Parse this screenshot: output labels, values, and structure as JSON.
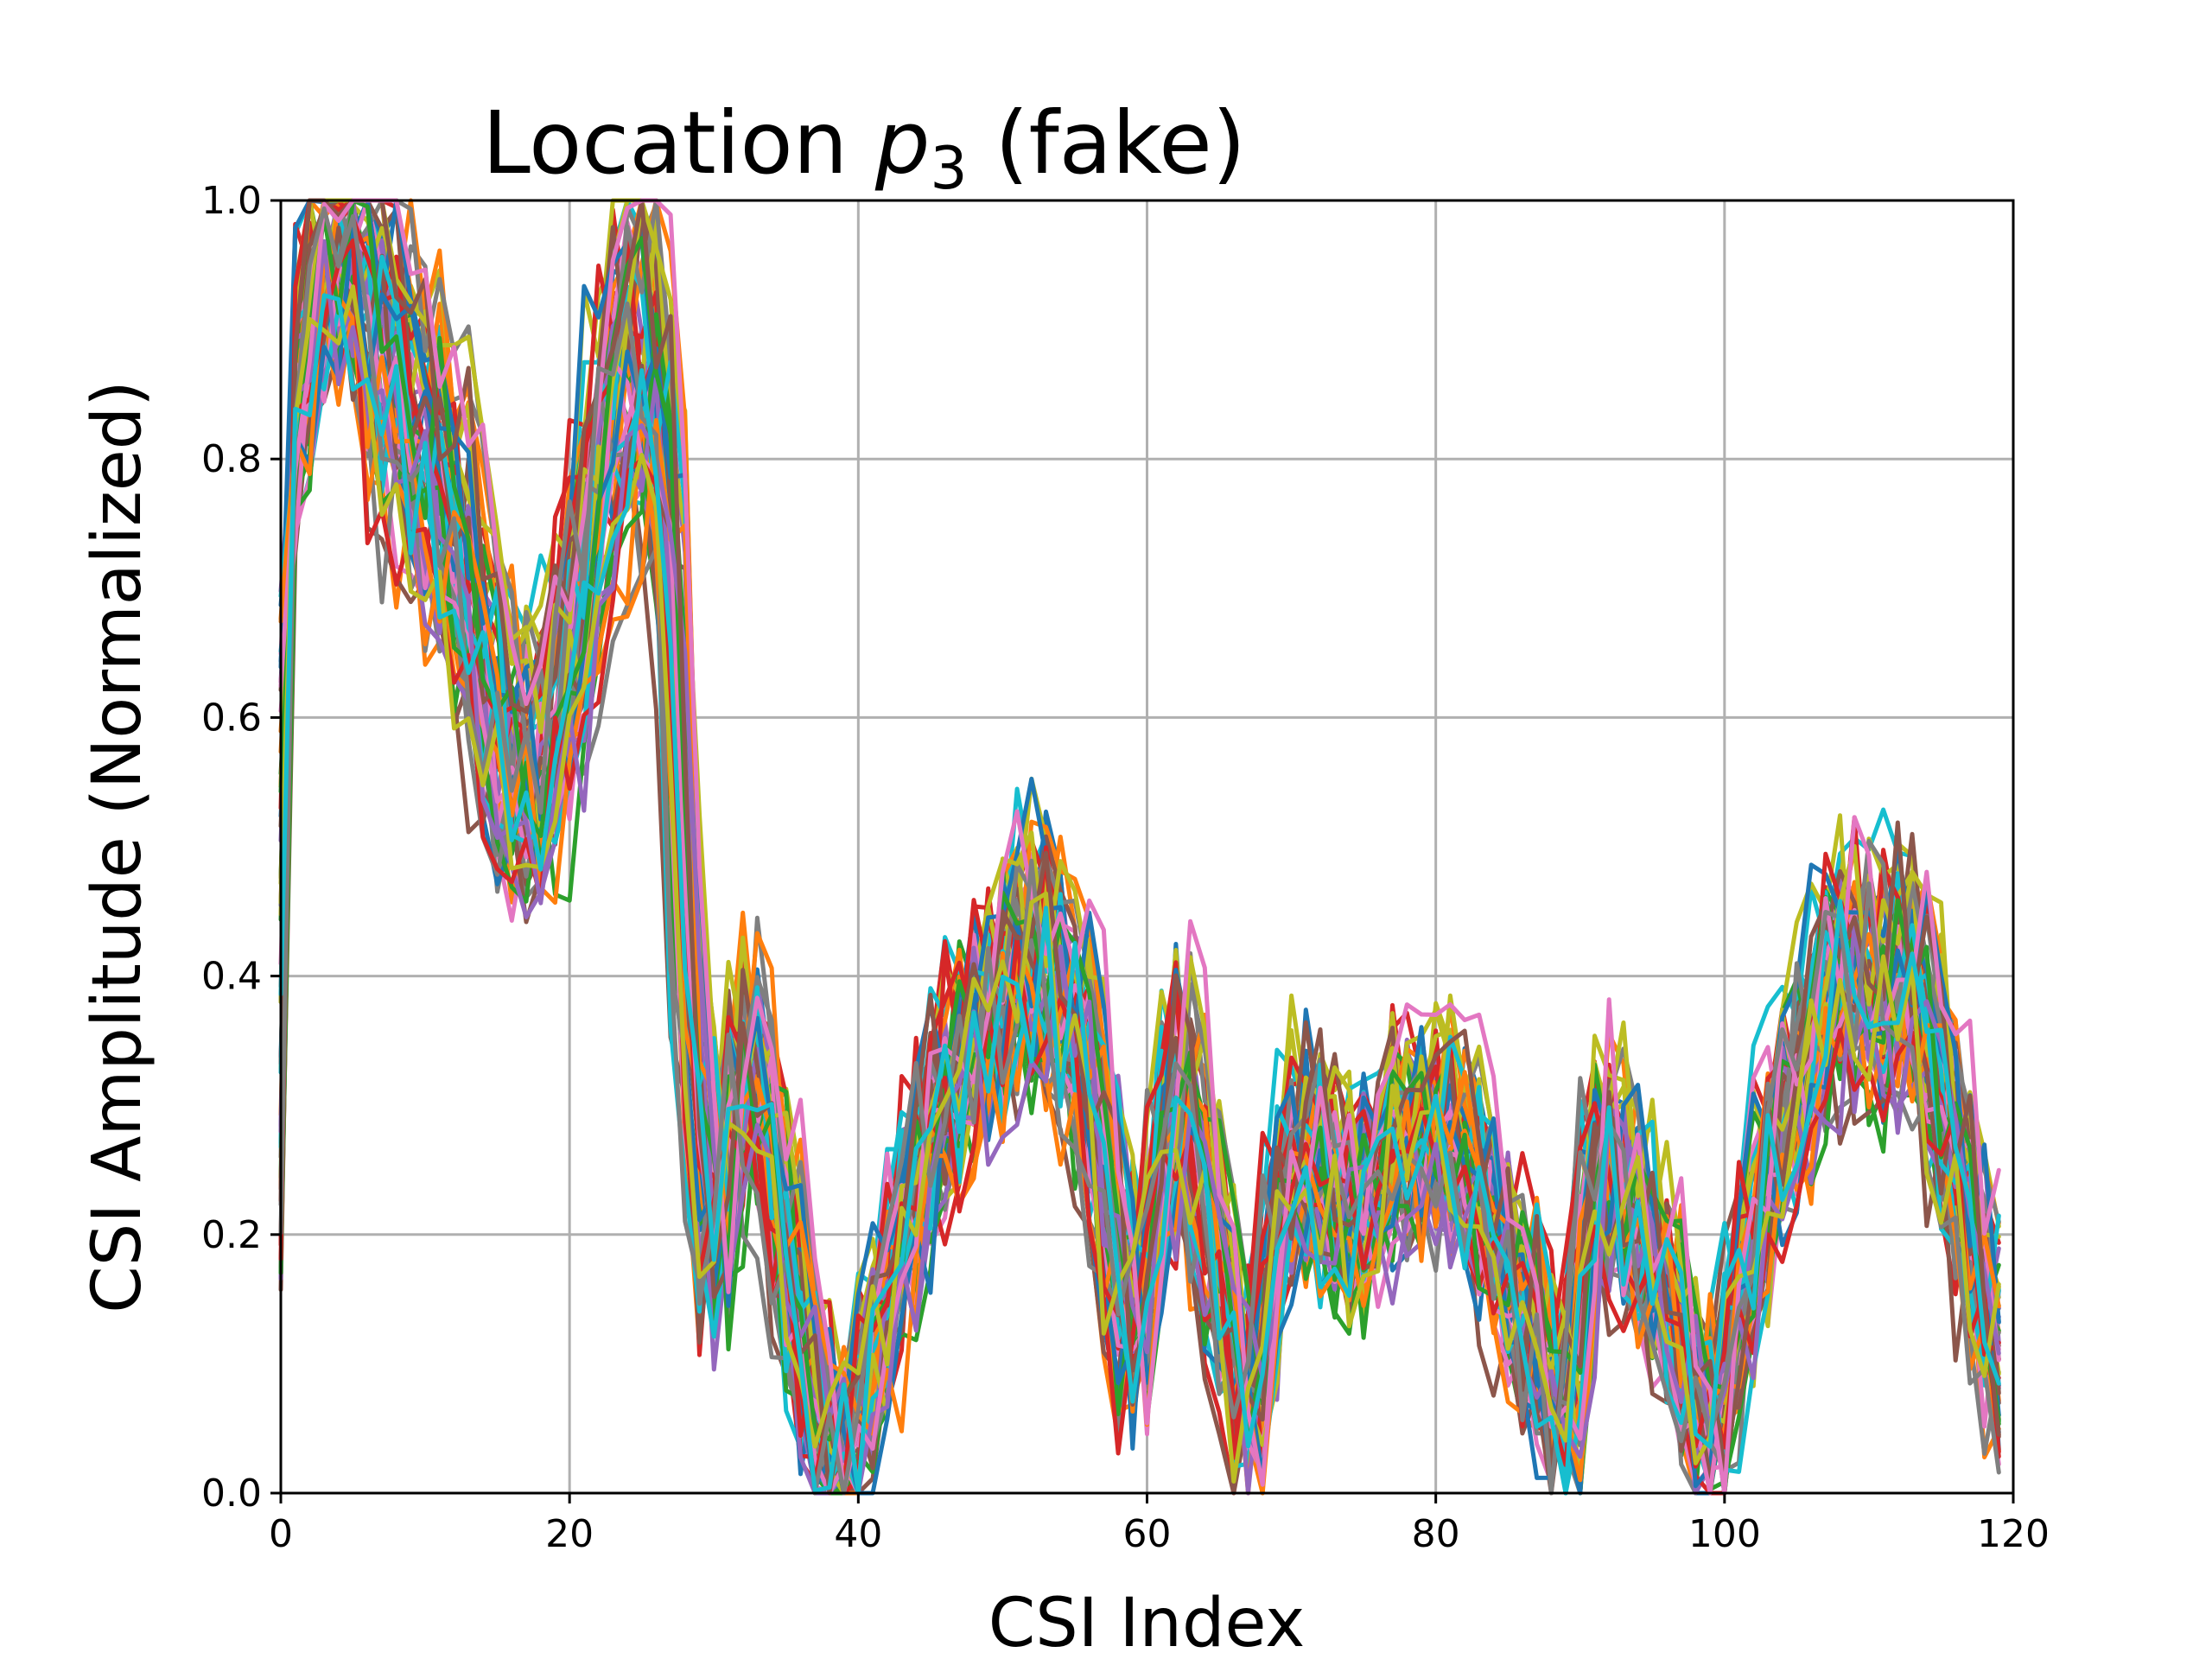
{
  "chart_data": {
    "type": "line",
    "title_prefix": "Location ",
    "title_var": "p",
    "title_sub": "3",
    "title_suffix": " (fake)",
    "xlabel": "CSI Index",
    "ylabel": "CSI Amplitude (Normalized)",
    "xlim": [
      0,
      120
    ],
    "ylim": [
      0,
      1
    ],
    "xticks": [
      0,
      20,
      40,
      60,
      80,
      100,
      120
    ],
    "yticks": [
      0.0,
      0.2,
      0.4,
      0.6,
      0.8,
      1.0
    ],
    "grid": true,
    "n_points": 120,
    "series_colors": [
      "#1f77b4",
      "#ff7f0e",
      "#2ca02c",
      "#d62728",
      "#9467bd",
      "#8c564b",
      "#e377c2",
      "#7f7f7f",
      "#bcbd22",
      "#17becf"
    ],
    "n_series": 60,
    "envelope": {
      "x": [
        0,
        1,
        3,
        6,
        8,
        10,
        13,
        15,
        17,
        19,
        21,
        23,
        25,
        27,
        28,
        30,
        32,
        34,
        36,
        38,
        40,
        43,
        46,
        50,
        53,
        56,
        58,
        59,
        62,
        64,
        66,
        67,
        69,
        71,
        74,
        77,
        80,
        83,
        86,
        89,
        91,
        94,
        96,
        99,
        100,
        103,
        105,
        108,
        110,
        113,
        116,
        119
      ],
      "y": [
        0.2,
        0.85,
        0.97,
        1.0,
        0.9,
        0.85,
        0.75,
        0.62,
        0.58,
        0.63,
        0.75,
        0.88,
        0.95,
        0.8,
        0.45,
        0.18,
        0.38,
        0.28,
        0.12,
        0.03,
        0.05,
        0.22,
        0.32,
        0.42,
        0.45,
        0.35,
        0.18,
        0.1,
        0.35,
        0.25,
        0.12,
        0.04,
        0.22,
        0.3,
        0.22,
        0.28,
        0.3,
        0.25,
        0.15,
        0.04,
        0.28,
        0.22,
        0.15,
        0.04,
        0.08,
        0.28,
        0.32,
        0.45,
        0.4,
        0.42,
        0.28,
        0.1
      ]
    }
  }
}
